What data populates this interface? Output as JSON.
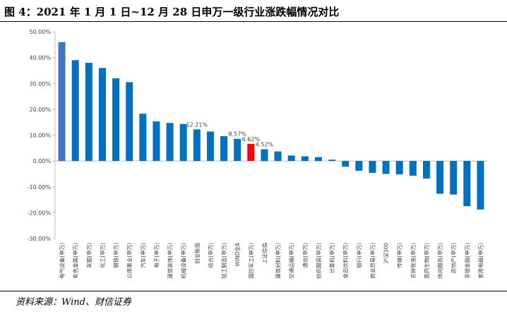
{
  "title": "图 4：2021 年 1 月 1 日~12 月 28 日申万一级行业涨跌幅情况对比",
  "source": "资料来源：Wind、财信证券",
  "colors": {
    "highlight_first": "#4472c4",
    "bar": "#0070c0",
    "highlight": "#ff0000",
    "axis": "#bfbfbf"
  },
  "chart_data": {
    "type": "bar",
    "title": "",
    "xlabel": "",
    "ylabel": "",
    "ylim": [
      -30,
      50
    ],
    "yticks": [
      -30,
      -20,
      -10,
      0,
      10,
      20,
      30,
      40,
      50
    ],
    "ytick_labels": [
      "-30.00%",
      "-20.00%",
      "-10.00%",
      "0.00%",
      "10.00%",
      "20.00%",
      "30.00%",
      "40.00%",
      "50.00%"
    ],
    "grid": false,
    "legend": "none",
    "categories": [
      "电气设备(申万)",
      "有色金属(申万)",
      "采掘(申万)",
      "化工(申万)",
      "钢铁(申万)",
      "公用事业(申万)",
      "汽车(申万)",
      "电子(申万)",
      "建筑装饰(申万)",
      "机械设备(申万)",
      "创业板指",
      "综合(申万)",
      "轻工制造(申万)",
      "WIND全A",
      "国防军工(申万)",
      "上证综指",
      "建筑材料(申万)",
      "交通运输(申万)",
      "通信(申万)",
      "纺织服装(申万)",
      "计算机(申万)",
      "食品饮料(申万)",
      "银行(申万)",
      "商业贸易(申万)",
      "沪深300",
      "传媒(申万)",
      "农林牧渔(申万)",
      "医药生物(申万)",
      "休闲服务(申万)",
      "房地产(申万)",
      "非银金融(申万)",
      "家用电器(申万)"
    ],
    "values": [
      46,
      39,
      38,
      36,
      32,
      30.5,
      18.3,
      15.3,
      14.7,
      14.3,
      12.21,
      11.4,
      9.6,
      8.57,
      6.62,
      4.52,
      3.7,
      2.1,
      1.8,
      1.5,
      0.5,
      -2.2,
      -3.8,
      -4.6,
      -5.0,
      -5.2,
      -5.7,
      -6.8,
      -12.7,
      -13.0,
      -17.5,
      -18.8
    ],
    "data_labels": [
      {
        "category": "创业板指",
        "text": "12.21%"
      },
      {
        "category": "WIND全A",
        "text": "8.57%"
      },
      {
        "category": "国防军工(申万)",
        "text": "6.62%"
      },
      {
        "category": "上证综指",
        "text": "4.52%"
      }
    ],
    "highlight_first": "电气设备(申万)",
    "highlight": "国防军工(申万)"
  }
}
